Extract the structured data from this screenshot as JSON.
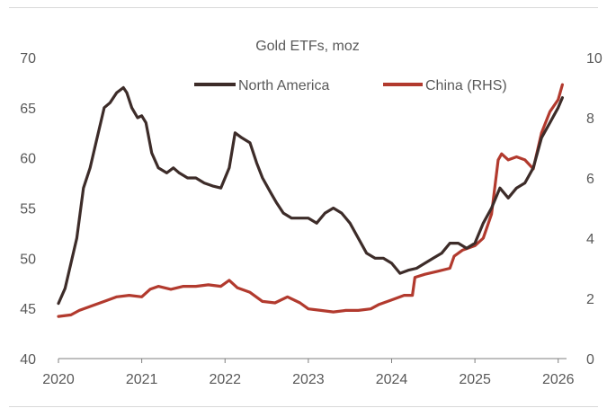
{
  "chart_data": {
    "type": "line",
    "title": "Gold ETFs, moz",
    "x_ticks": [
      "2020",
      "2021",
      "2022",
      "2023",
      "2024",
      "2025",
      "2026"
    ],
    "xlim": [
      2020,
      2026.1
    ],
    "y_left": {
      "lim": [
        40,
        70
      ],
      "ticks": [
        "40",
        "45",
        "50",
        "55",
        "60",
        "65",
        "70"
      ]
    },
    "y_right": {
      "lim": [
        0,
        10
      ],
      "ticks": [
        "0",
        "2",
        "4",
        "6",
        "8",
        "10"
      ]
    },
    "grid": false,
    "legend_position": "top-center",
    "series": [
      {
        "name": "North America",
        "axis": "left",
        "color": "#3d2c29",
        "x": [
          2020.0,
          2020.08,
          2020.15,
          2020.22,
          2020.3,
          2020.38,
          2020.45,
          2020.55,
          2020.62,
          2020.7,
          2020.78,
          2020.82,
          2020.88,
          2020.95,
          2021.0,
          2021.05,
          2021.12,
          2021.2,
          2021.3,
          2021.38,
          2021.45,
          2021.55,
          2021.65,
          2021.75,
          2021.85,
          2021.95,
          2022.05,
          2022.12,
          2022.2,
          2022.3,
          2022.38,
          2022.45,
          2022.55,
          2022.62,
          2022.7,
          2022.8,
          2022.9,
          2023.0,
          2023.1,
          2023.2,
          2023.3,
          2023.4,
          2023.5,
          2023.6,
          2023.7,
          2023.8,
          2023.9,
          2024.0,
          2024.1,
          2024.2,
          2024.3,
          2024.4,
          2024.5,
          2024.6,
          2024.7,
          2024.8,
          2024.9,
          2025.0,
          2025.1,
          2025.2,
          2025.3,
          2025.4,
          2025.5,
          2025.6,
          2025.7,
          2025.8,
          2025.9,
          2026.0,
          2026.05
        ],
        "values": [
          45.5,
          47,
          49.5,
          52,
          57,
          59,
          61.5,
          65,
          65.5,
          66.5,
          67,
          66.5,
          65,
          64,
          64.2,
          63.5,
          60.5,
          59,
          58.5,
          59,
          58.5,
          58,
          58,
          57.5,
          57.2,
          57,
          59,
          62.5,
          62,
          61.5,
          59.5,
          58,
          56.5,
          55.5,
          54.5,
          54,
          54,
          54,
          53.5,
          54.5,
          55,
          54.5,
          53.5,
          52,
          50.5,
          50,
          50,
          49.5,
          48.5,
          48.8,
          49,
          49.5,
          50,
          50.5,
          51.5,
          51.5,
          51,
          51.5,
          53.5,
          55,
          57,
          56,
          57,
          57.5,
          59,
          62,
          63.5,
          65,
          66
        ]
      },
      {
        "name": "China (RHS)",
        "axis": "right",
        "color": "#b23a2e",
        "x": [
          2020.0,
          2020.15,
          2020.25,
          2020.4,
          2020.55,
          2020.7,
          2020.85,
          2021.0,
          2021.1,
          2021.2,
          2021.35,
          2021.5,
          2021.65,
          2021.8,
          2021.95,
          2022.05,
          2022.15,
          2022.3,
          2022.45,
          2022.6,
          2022.75,
          2022.9,
          2023.0,
          2023.15,
          2023.3,
          2023.45,
          2023.6,
          2023.75,
          2023.85,
          2024.0,
          2024.15,
          2024.25,
          2024.28,
          2024.4,
          2024.55,
          2024.7,
          2024.75,
          2024.85,
          2025.0,
          2025.1,
          2025.2,
          2025.28,
          2025.32,
          2025.4,
          2025.5,
          2025.6,
          2025.7,
          2025.8,
          2025.9,
          2026.0,
          2026.05
        ],
        "values": [
          1.4,
          1.45,
          1.6,
          1.75,
          1.9,
          2.05,
          2.1,
          2.05,
          2.3,
          2.4,
          2.3,
          2.4,
          2.4,
          2.45,
          2.4,
          2.6,
          2.35,
          2.2,
          1.9,
          1.85,
          2.05,
          1.85,
          1.65,
          1.6,
          1.55,
          1.6,
          1.6,
          1.65,
          1.8,
          1.95,
          2.1,
          2.1,
          2.7,
          2.8,
          2.9,
          3.0,
          3.4,
          3.6,
          3.75,
          4.0,
          4.8,
          6.6,
          6.8,
          6.6,
          6.7,
          6.6,
          6.3,
          7.5,
          8.2,
          8.6,
          9.1
        ]
      }
    ]
  }
}
